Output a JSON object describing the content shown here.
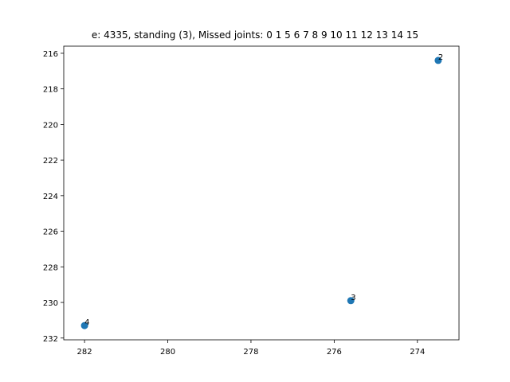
{
  "chart_data": {
    "type": "scatter",
    "title": "e: 4335, standing (3), Missed joints: 0  1  5  6  7  8  9  10  11  12  13  14  15",
    "xlabel": "",
    "ylabel": "",
    "xlim": [
      282.5,
      273.0
    ],
    "ylim": [
      215.6,
      232.1
    ],
    "x_inverted": true,
    "y_inverted": true,
    "grid": false,
    "marker_color": "#1f77b4",
    "x_ticks": [
      282,
      280,
      278,
      276,
      274
    ],
    "y_ticks": [
      216,
      218,
      220,
      222,
      224,
      226,
      228,
      230,
      232
    ],
    "points": [
      {
        "label": "2",
        "x": 273.5,
        "y": 216.4
      },
      {
        "label": "3",
        "x": 275.6,
        "y": 229.9
      },
      {
        "label": "4",
        "x": 282.0,
        "y": 231.3
      }
    ]
  }
}
